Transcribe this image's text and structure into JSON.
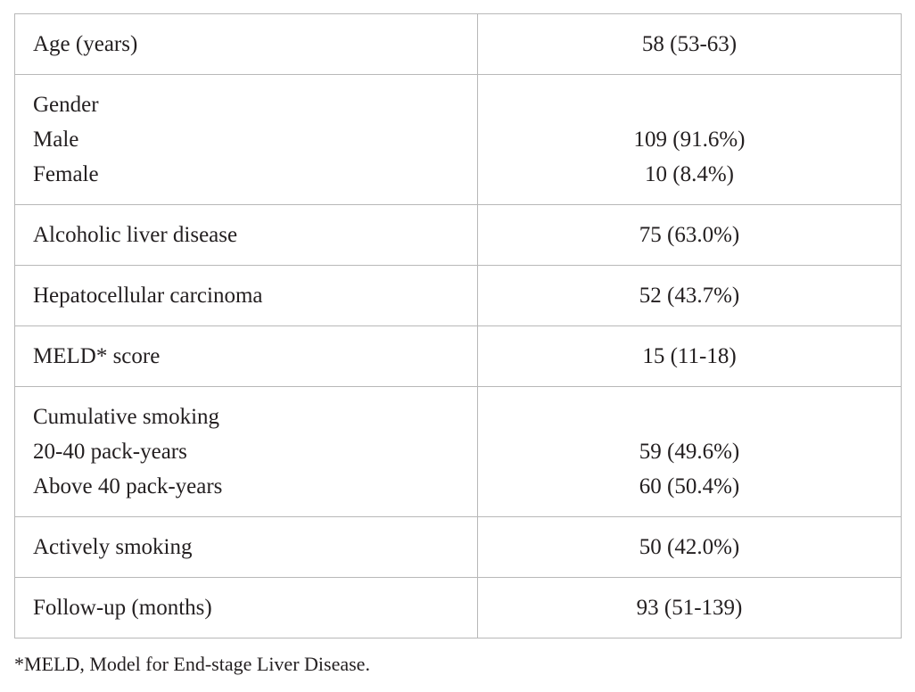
{
  "table": {
    "rows": [
      {
        "label": "Age (years)",
        "value": "58 (53-63)"
      },
      {
        "label": "Gender",
        "sub": [
          {
            "label": "Male",
            "value": "109 (91.6%)"
          },
          {
            "label": "Female",
            "value": "10 (8.4%)"
          }
        ]
      },
      {
        "label": "Alcoholic liver disease",
        "value": "75 (63.0%)"
      },
      {
        "label": "Hepatocellular carcinoma",
        "value": "52 (43.7%)"
      },
      {
        "label": "MELD* score",
        "value": "15 (11-18)"
      },
      {
        "label": "Cumulative smoking",
        "sub": [
          {
            "label": "20-40 pack-years",
            "value": "59 (49.6%)"
          },
          {
            "label": "Above 40 pack-years",
            "value": "60 (50.4%)"
          }
        ]
      },
      {
        "label": "Actively smoking",
        "value": "50 (42.0%)"
      },
      {
        "label": "Follow-up (months)",
        "value": "93 (51-139)"
      }
    ]
  },
  "footnote": "*MELD, Model for End-stage Liver Disease."
}
